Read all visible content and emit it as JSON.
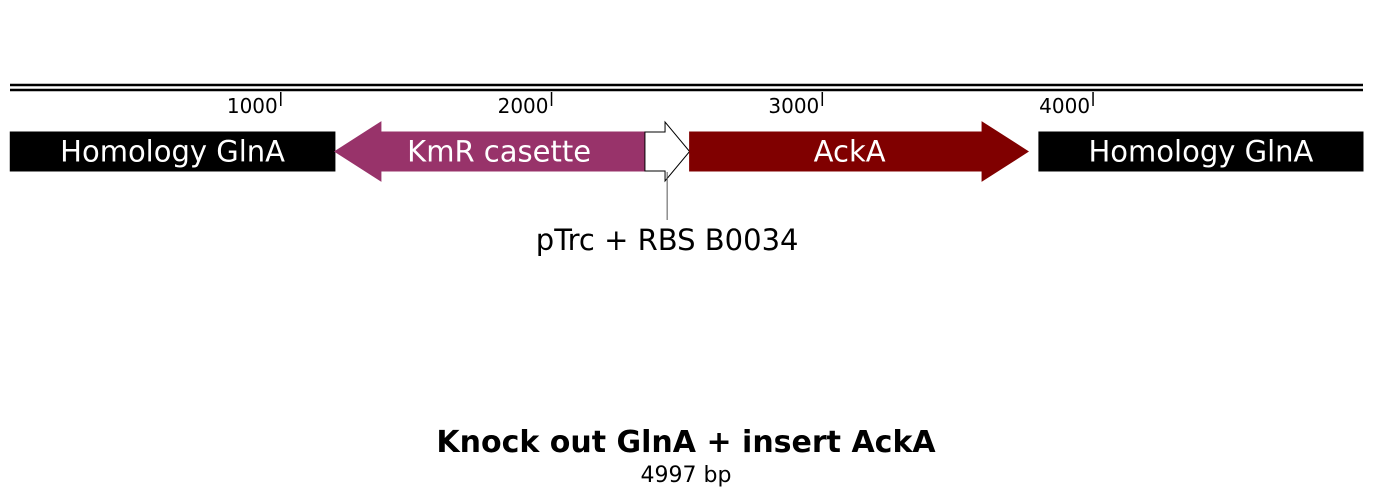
{
  "plasmid_map": {
    "title": "Knock out GlnA + insert AckA",
    "length_label": "4997 bp",
    "length_bp": 4997,
    "ruler_ticks": [
      {
        "label": "1000",
        "position_bp": 1000
      },
      {
        "label": "2000",
        "position_bp": 2000
      },
      {
        "label": "3000",
        "position_bp": 3000
      },
      {
        "label": "4000",
        "position_bp": 4000
      }
    ],
    "features": [
      {
        "id": "homology-glna-left",
        "label": "Homology GlnA",
        "start_bp": 1,
        "end_bp": 1200,
        "shape": "box",
        "color": "#000000"
      },
      {
        "id": "kmr-casette",
        "label": "KmR casette",
        "start_bp": 1200,
        "end_bp": 2345,
        "shape": "arrow-left",
        "color": "#98336a"
      },
      {
        "id": "ptrc-rbs",
        "label": "",
        "start_bp": 2345,
        "end_bp": 2510,
        "shape": "arrow-right",
        "color": "#ffffff"
      },
      {
        "id": "acka",
        "label": "AckA",
        "start_bp": 2510,
        "end_bp": 3760,
        "shape": "arrow-right",
        "color": "#800000"
      },
      {
        "id": "homology-glna-right",
        "label": "Homology GlnA",
        "start_bp": 3800,
        "end_bp": 4997,
        "shape": "box",
        "color": "#000000"
      }
    ],
    "callouts": [
      {
        "id": "ptrc-callout",
        "label": "pTrc + RBS B0034",
        "position_bp": 2427
      }
    ],
    "colors": {
      "backbone": "#000000",
      "kmr": "#98336a",
      "acka": "#800000",
      "homology": "#000000",
      "promoter": "#ffffff"
    }
  }
}
